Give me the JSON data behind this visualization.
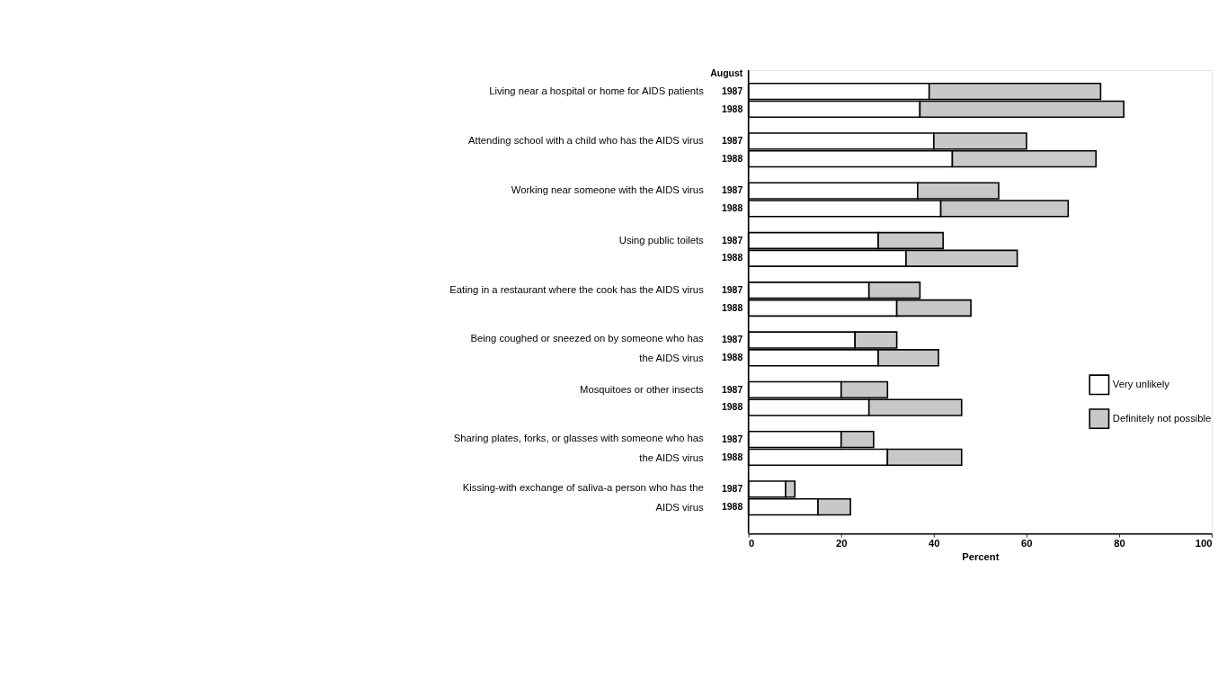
{
  "chart_data": {
    "type": "bar",
    "orientation": "horizontal",
    "stacked": true,
    "xlabel": "Percent",
    "ylabel": "August",
    "categories": [
      "1987",
      "1988",
      "1987",
      "1988",
      "1987",
      "1988",
      "1987",
      "1988",
      "1987",
      "1988",
      "1987",
      "1988",
      "1987",
      "1988",
      "1987",
      "1988",
      "1987",
      "1988"
    ],
    "series": [
      {
        "name": "Very unlikely",
        "color": "#ffffff",
        "values": [
          39,
          37,
          40,
          44,
          36.5,
          41.5,
          28,
          34,
          26,
          32,
          23,
          28,
          20,
          26,
          20,
          30,
          8,
          15
        ]
      },
      {
        "name": "Definitely not possible",
        "color": "#c8c8c8",
        "values": [
          37,
          44,
          20,
          31,
          17.5,
          27.5,
          14,
          24,
          11,
          16,
          9,
          13,
          10,
          20,
          7,
          16,
          2,
          7
        ]
      }
    ],
    "annotations": [
      "Living near a hospital or home for AIDS patients",
      "Attending school with a child who has the AIDS virus",
      "Working near someone with the AIDS virus",
      "Using public toilets",
      "Eating in a restaurant where the cook has the AIDS virus",
      "Being coughed or sneezed on by someone who has\nthe AIDS virus",
      "Mosquitoes or other insects",
      "Sharing plates, forks, or glasses with someone who has\nthe AIDS virus",
      "Kissing-with exchange of saliva-a person who has the\nAIDS virus"
    ],
    "xlim": [
      0,
      100
    ],
    "xticks": [
      0,
      20,
      40,
      60,
      80,
      100
    ],
    "grid": false,
    "legend": "right"
  }
}
